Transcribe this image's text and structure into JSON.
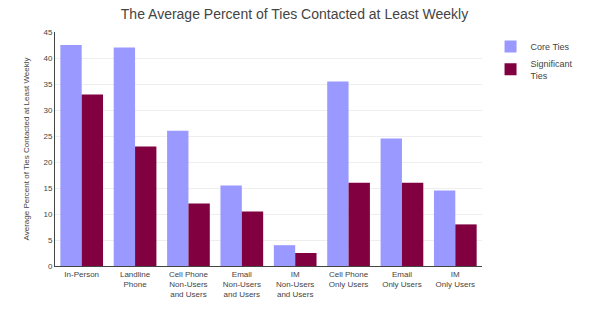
{
  "chart_data": {
    "type": "bar",
    "title": "The Average Percent of Ties Contacted at Least Weekly",
    "ylabel": "Average Percent of Ties Contacted at Least Weekly",
    "categories": [
      "In-Person",
      "Landline\nPhone",
      "Cell Phone\nNon-Users\nand Users",
      "Email\nNon-Users\nand Users",
      "IM\nNon-Users\nand Users",
      "Cell Phone\nOnly Users",
      "Email\nOnly Users",
      "IM\nOnly Users"
    ],
    "series": [
      {
        "name": "Core Ties",
        "color": "#9999ff",
        "values": [
          42.5,
          42.0,
          26.0,
          15.5,
          4.0,
          35.5,
          24.5,
          14.5
        ]
      },
      {
        "name": "Significant\nTies",
        "color": "#800040",
        "values": [
          33.0,
          23.0,
          12.0,
          10.5,
          2.5,
          16.0,
          16.0,
          8.0
        ]
      }
    ],
    "ylim": [
      0,
      45
    ],
    "yticks": [
      0,
      5,
      10,
      15,
      20,
      25,
      30,
      35,
      40,
      45
    ],
    "grid": true,
    "legend": "right"
  }
}
